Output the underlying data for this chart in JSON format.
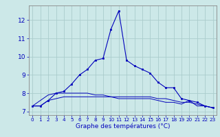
{
  "hours": [
    0,
    1,
    2,
    3,
    4,
    5,
    6,
    7,
    8,
    9,
    10,
    11,
    12,
    13,
    14,
    15,
    16,
    17,
    18,
    19,
    20,
    21,
    22,
    23
  ],
  "temp_main": [
    7.3,
    7.3,
    7.6,
    8.0,
    8.1,
    8.5,
    9.0,
    9.3,
    9.8,
    9.9,
    11.5,
    12.5,
    9.8,
    9.5,
    9.3,
    9.1,
    8.6,
    8.3,
    8.3,
    7.7,
    7.6,
    7.5,
    7.3,
    7.2
  ],
  "temp_line2": [
    7.3,
    7.6,
    7.9,
    8.0,
    8.0,
    8.0,
    8.0,
    8.0,
    7.9,
    7.9,
    7.8,
    7.8,
    7.8,
    7.8,
    7.8,
    7.8,
    7.7,
    7.7,
    7.6,
    7.5,
    7.5,
    7.4,
    7.3,
    7.2
  ],
  "temp_line3": [
    7.3,
    7.3,
    7.6,
    7.7,
    7.8,
    7.8,
    7.8,
    7.8,
    7.8,
    7.8,
    7.8,
    7.7,
    7.7,
    7.7,
    7.7,
    7.7,
    7.6,
    7.5,
    7.5,
    7.4,
    7.6,
    7.3,
    7.3,
    7.2
  ],
  "bg_color": "#cce8e8",
  "grid_color": "#aacccc",
  "line_color": "#0000bb",
  "xlabel": "Graphe des températures (°C)",
  "ylim": [
    6.8,
    12.8
  ],
  "yticks": [
    7,
    8,
    9,
    10,
    11,
    12
  ],
  "xlim": [
    -0.5,
    23.5
  ],
  "xticks": [
    0,
    1,
    2,
    3,
    4,
    5,
    6,
    7,
    8,
    9,
    10,
    11,
    12,
    13,
    14,
    15,
    16,
    17,
    18,
    19,
    20,
    21,
    22,
    23
  ]
}
